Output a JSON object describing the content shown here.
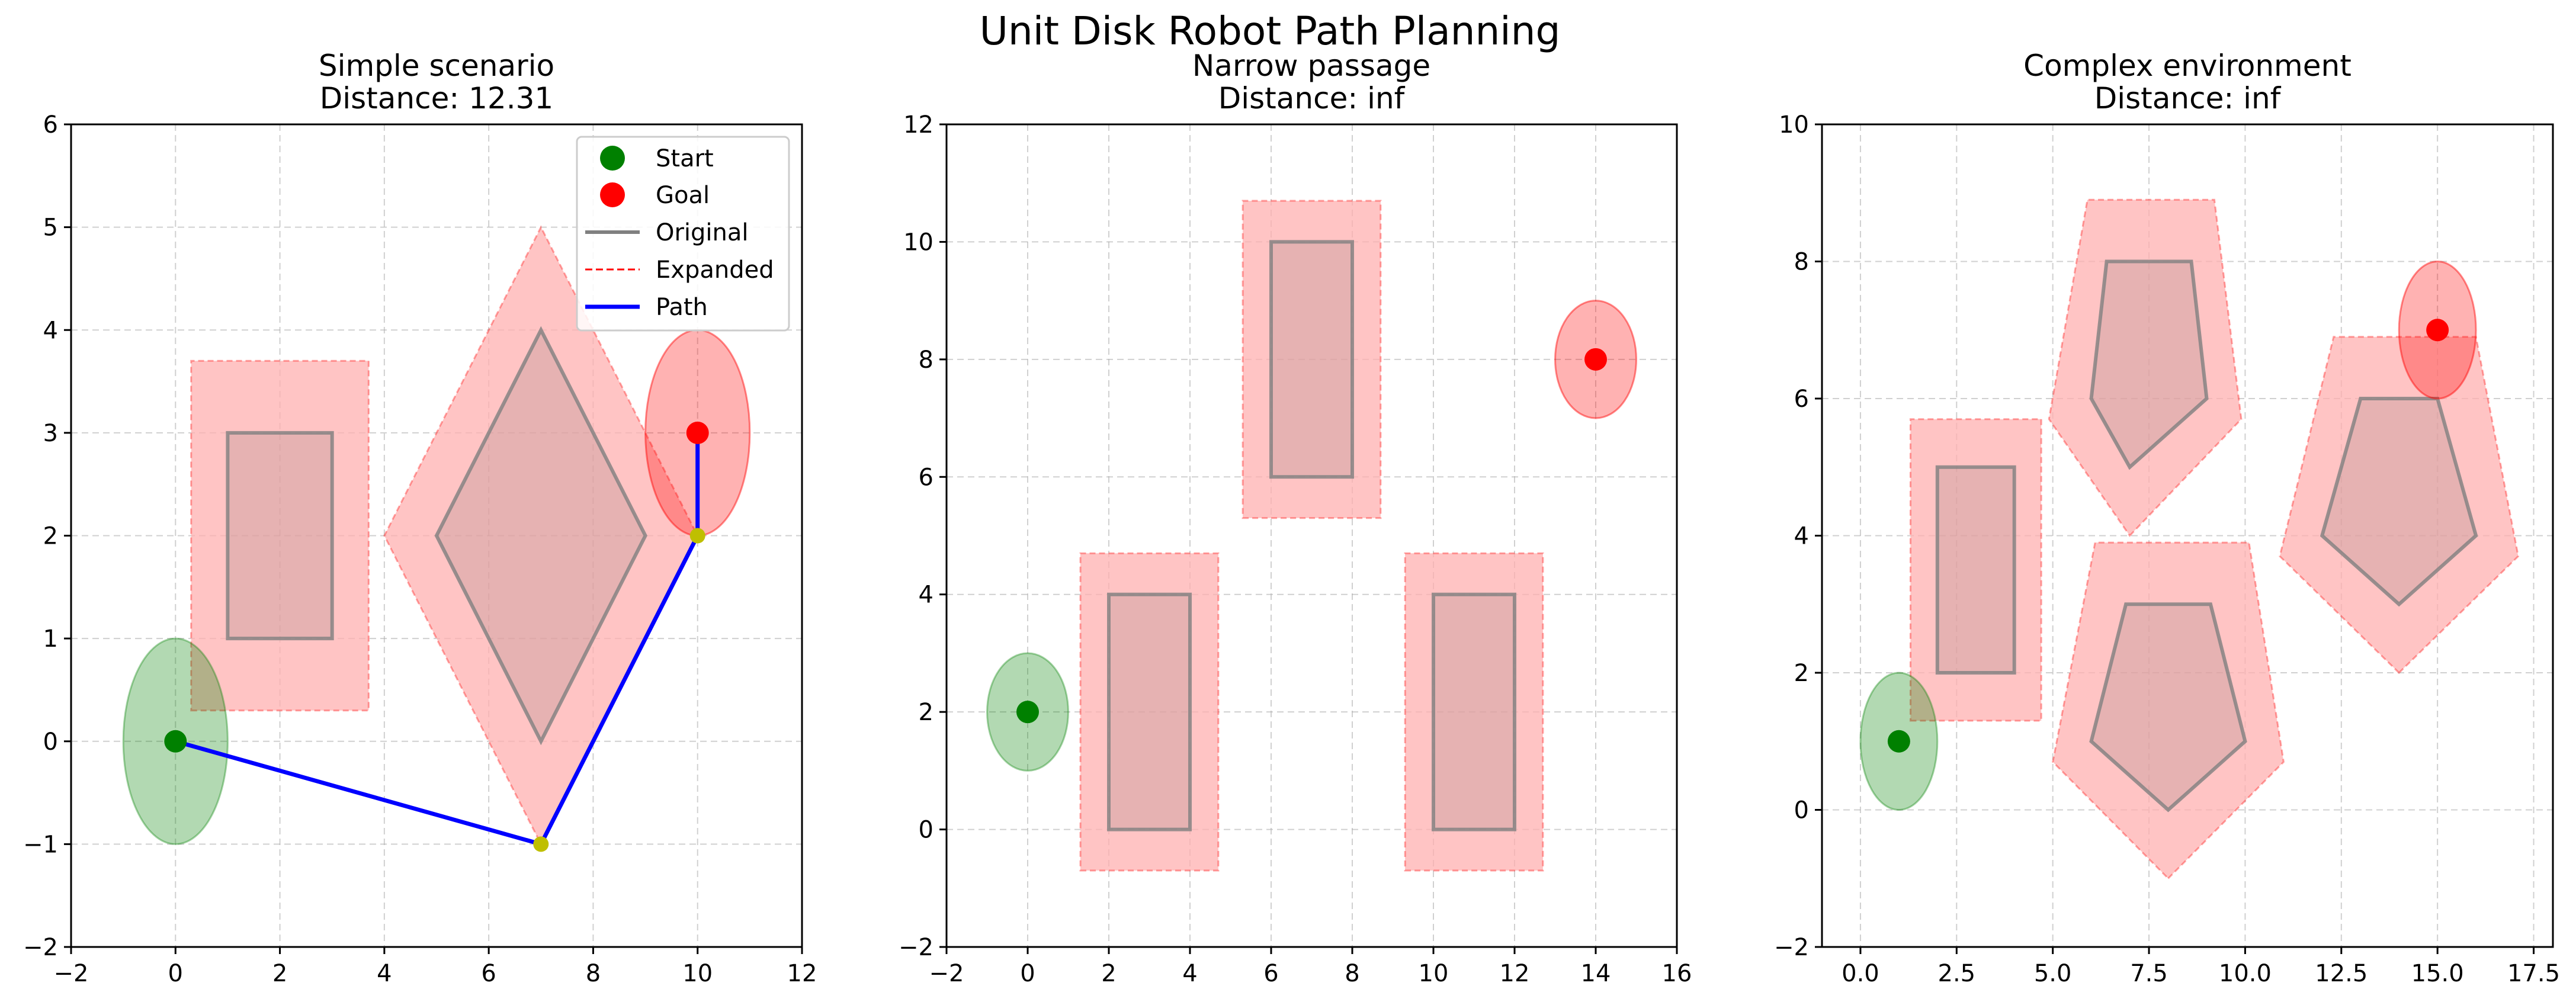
{
  "figure": {
    "title": "Unit Disk Robot Path Planning"
  },
  "colors": {
    "start": "#008000",
    "goal": "#ff0000",
    "original_outline": "#808080",
    "obstacle_fill": "#ffb0b0",
    "expanded_edge": "#ff0000",
    "path": "#0000ff",
    "waypoint": "#bfbf00",
    "grid": "#b0b0b0"
  },
  "legend": {
    "start": "Start",
    "goal": "Goal",
    "original": "Original",
    "expanded": "Expanded",
    "path": "Path"
  },
  "chart_data": [
    {
      "type": "scatter",
      "title": "Simple scenario",
      "subtitle": "Distance: 12.31",
      "xlim": [
        -2,
        12
      ],
      "ylim": [
        -2,
        6
      ],
      "xticks": [
        -2,
        0,
        2,
        4,
        6,
        8,
        10,
        12
      ],
      "yticks": [
        -2,
        -1,
        0,
        1,
        2,
        3,
        4,
        5,
        6
      ],
      "xtick_labels": [
        "−2",
        "0",
        "2",
        "4",
        "6",
        "8",
        "10",
        "12"
      ],
      "ytick_labels": [
        "−2",
        "−1",
        "0",
        "1",
        "2",
        "3",
        "4",
        "5",
        "6"
      ],
      "grid": true,
      "legend_position": "top-right",
      "start": [
        0,
        0
      ],
      "goal": [
        10,
        3
      ],
      "robot_radius": 1,
      "obstacles": [
        {
          "original": [
            [
              1,
              1
            ],
            [
              3,
              1
            ],
            [
              3,
              3
            ],
            [
              1,
              3
            ]
          ],
          "expanded": [
            [
              0.3,
              0.3
            ],
            [
              3.7,
              0.3
            ],
            [
              3.7,
              3.7
            ],
            [
              0.3,
              3.7
            ]
          ]
        },
        {
          "original": [
            [
              7,
              0
            ],
            [
              9,
              2
            ],
            [
              7,
              4
            ],
            [
              5,
              2
            ]
          ],
          "expanded": [
            [
              7,
              -1
            ],
            [
              10,
              2
            ],
            [
              7,
              5
            ],
            [
              4,
              2
            ]
          ]
        }
      ],
      "path": [
        [
          0,
          0
        ],
        [
          7,
          -1
        ],
        [
          10,
          2
        ],
        [
          10,
          3
        ]
      ],
      "waypoints": [
        [
          7,
          -1
        ],
        [
          10,
          2
        ]
      ]
    },
    {
      "type": "scatter",
      "title": "Narrow passage",
      "subtitle": "Distance: inf",
      "xlim": [
        -2,
        16
      ],
      "ylim": [
        -2,
        12
      ],
      "xticks": [
        -2,
        0,
        2,
        4,
        6,
        8,
        10,
        12,
        14,
        16
      ],
      "yticks": [
        -2,
        0,
        2,
        4,
        6,
        8,
        10,
        12
      ],
      "xtick_labels": [
        "−2",
        "0",
        "2",
        "4",
        "6",
        "8",
        "10",
        "12",
        "14",
        "16"
      ],
      "ytick_labels": [
        "−2",
        "0",
        "2",
        "4",
        "6",
        "8",
        "10",
        "12"
      ],
      "grid": true,
      "start": [
        0,
        2
      ],
      "goal": [
        14,
        8
      ],
      "robot_radius": 1,
      "obstacles": [
        {
          "original": [
            [
              2,
              0
            ],
            [
              4,
              0
            ],
            [
              4,
              4
            ],
            [
              2,
              4
            ]
          ],
          "expanded": [
            [
              1.3,
              -0.7
            ],
            [
              4.7,
              -0.7
            ],
            [
              4.7,
              4.7
            ],
            [
              1.3,
              4.7
            ]
          ]
        },
        {
          "original": [
            [
              6,
              6
            ],
            [
              8,
              6
            ],
            [
              8,
              10
            ],
            [
              6,
              10
            ]
          ],
          "expanded": [
            [
              5.3,
              5.3
            ],
            [
              8.7,
              5.3
            ],
            [
              8.7,
              10.7
            ],
            [
              5.3,
              10.7
            ]
          ]
        },
        {
          "original": [
            [
              10,
              0
            ],
            [
              12,
              0
            ],
            [
              12,
              4
            ],
            [
              10,
              4
            ]
          ],
          "expanded": [
            [
              9.3,
              -0.7
            ],
            [
              12.7,
              -0.7
            ],
            [
              12.7,
              4.7
            ],
            [
              9.3,
              4.7
            ]
          ]
        }
      ],
      "path": [],
      "waypoints": []
    },
    {
      "type": "scatter",
      "title": "Complex environment",
      "subtitle": "Distance: inf",
      "xlim": [
        -1,
        18
      ],
      "ylim": [
        -2,
        10
      ],
      "xticks": [
        0,
        2.5,
        5,
        7.5,
        10,
        12.5,
        15,
        17.5
      ],
      "yticks": [
        -2,
        0,
        2,
        4,
        6,
        8,
        10
      ],
      "xtick_labels": [
        "0.0",
        "2.5",
        "5.0",
        "7.5",
        "10.0",
        "12.5",
        "15.0",
        "17.5"
      ],
      "ytick_labels": [
        "−2",
        "0",
        "2",
        "4",
        "6",
        "8",
        "10"
      ],
      "grid": true,
      "start": [
        1,
        1
      ],
      "goal": [
        15,
        7
      ],
      "robot_radius": 1,
      "obstacles": [
        {
          "original": [
            [
              2,
              2
            ],
            [
              4,
              2
            ],
            [
              4,
              5
            ],
            [
              2,
              5
            ]
          ],
          "expanded": [
            [
              1.3,
              1.3
            ],
            [
              4.7,
              1.3
            ],
            [
              4.7,
              5.7
            ],
            [
              1.3,
              5.7
            ]
          ]
        },
        {
          "original": [
            [
              7,
              5
            ],
            [
              9,
              6
            ],
            [
              8.6,
              8
            ],
            [
              6.4,
              8
            ],
            [
              6,
              6
            ]
          ],
          "expanded": [
            [
              7,
              4
            ],
            [
              9.9,
              5.7
            ],
            [
              9.2,
              8.9
            ],
            [
              5.9,
              8.9
            ],
            [
              4.9,
              5.7
            ]
          ]
        },
        {
          "original": [
            [
              8,
              0
            ],
            [
              10,
              1
            ],
            [
              9.1,
              3
            ],
            [
              6.9,
              3
            ],
            [
              6,
              1
            ]
          ],
          "expanded": [
            [
              8,
              -1
            ],
            [
              11,
              0.7
            ],
            [
              10.1,
              3.9
            ],
            [
              6.1,
              3.9
            ],
            [
              5,
              0.7
            ]
          ]
        },
        {
          "original": [
            [
              14,
              3
            ],
            [
              16,
              4
            ],
            [
              15,
              6
            ],
            [
              13,
              6
            ],
            [
              12,
              4
            ]
          ],
          "expanded": [
            [
              14,
              2
            ],
            [
              17.1,
              3.7
            ],
            [
              16,
              6.9
            ],
            [
              12.3,
              6.9
            ],
            [
              10.9,
              3.7
            ]
          ]
        }
      ],
      "path": [],
      "waypoints": []
    }
  ]
}
